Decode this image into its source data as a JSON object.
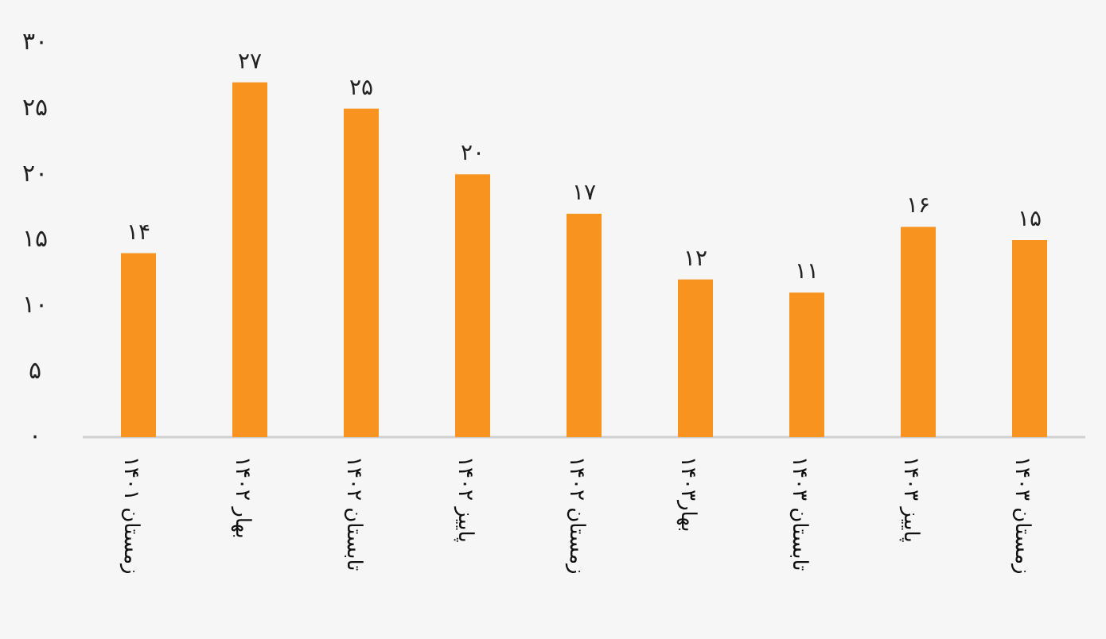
{
  "chart_data": {
    "type": "bar",
    "categories": [
      "زمستان ۱۴۰۱",
      "بهار ۱۴۰۲",
      "تابستان ۱۴۰۲",
      "پاییز ۱۴۰۲",
      "زمستان ۱۴۰۲",
      "بهار۱۴۰۳",
      "تابستان ۱۴۰۳",
      "پاییز ۱۴۰۳",
      "زمستان ۱۴۰۳"
    ],
    "values": [
      14,
      27,
      25,
      20,
      17,
      12,
      11,
      16,
      15
    ],
    "value_labels": [
      "۱۴",
      "۲۷",
      "۲۵",
      "۲۰",
      "۱۷",
      "۱۲",
      "۱۱",
      "۱۶",
      "۱۵"
    ],
    "color": "#f7931e",
    "ylim": [
      0,
      30
    ],
    "yticks": [
      {
        "value": 0,
        "label": "۰"
      },
      {
        "value": 5,
        "label": "۵"
      },
      {
        "value": 10,
        "label": "۱۰"
      },
      {
        "value": 15,
        "label": "۱۵"
      },
      {
        "value": 20,
        "label": "۲۰"
      },
      {
        "value": 25,
        "label": "۲۵"
      },
      {
        "value": 30,
        "label": "۳۰"
      }
    ],
    "grid": false
  }
}
